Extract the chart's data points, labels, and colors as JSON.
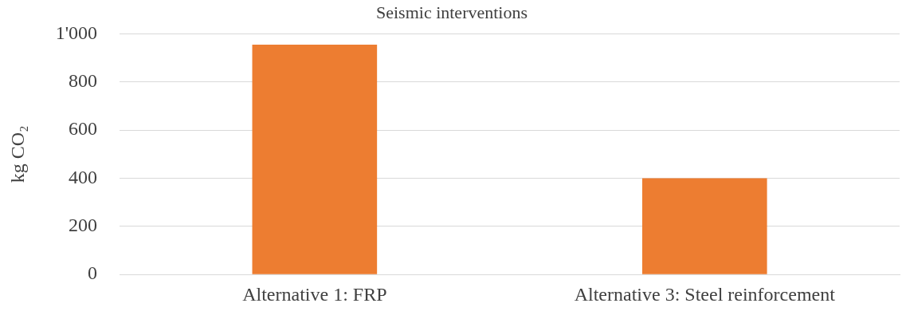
{
  "chart_data": {
    "type": "bar",
    "title": "Seismic interventions",
    "ylabel": "kg CO₂",
    "categories": [
      "Alternative 1: FRP",
      "Alternative 3: Steel reinforcement"
    ],
    "values": [
      955,
      400
    ],
    "color": "#ed7d31",
    "ylim": [
      0,
      1000
    ],
    "yticks": [
      0,
      200,
      400,
      600,
      800,
      {
        "value": 1000,
        "label": "1'000"
      }
    ],
    "grid": "y",
    "legend": false
  }
}
